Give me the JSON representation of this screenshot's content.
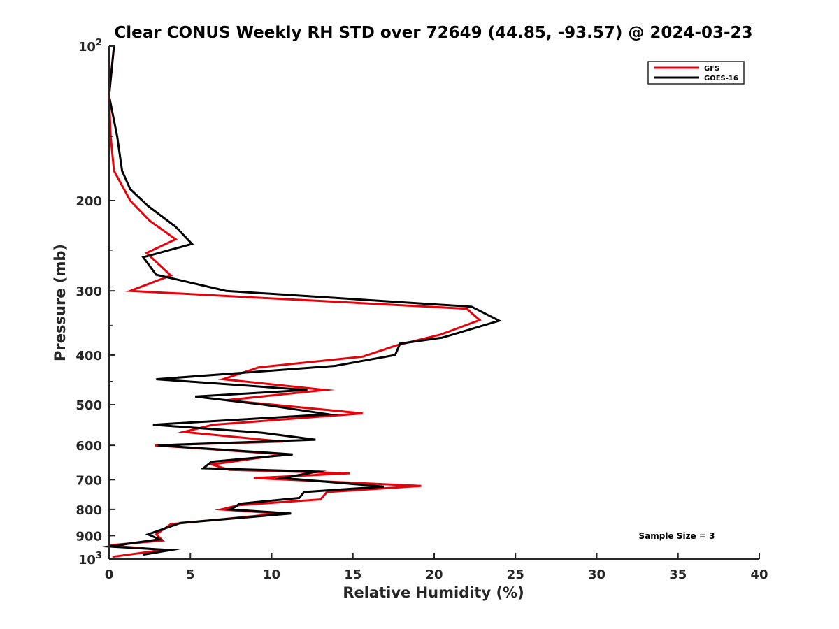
{
  "chart_data": {
    "type": "line",
    "title": "Clear CONUS Weekly RH STD over 72649 (44.85, -93.57) @ 2024-03-23",
    "xlabel": "Relative Humidity (%)",
    "ylabel": "Pressure (mb)",
    "xlim": [
      0,
      40
    ],
    "ylim": [
      100,
      1000
    ],
    "y_scale": "log",
    "y_reversed": true,
    "x_ticks": [
      "0",
      "5",
      "10",
      "15",
      "20",
      "25",
      "30",
      "35",
      "40"
    ],
    "y_ticks": [
      {
        "value": 100,
        "base": "10",
        "sup": "2"
      },
      {
        "value": 200,
        "label": "200"
      },
      {
        "value": 300,
        "label": "300"
      },
      {
        "value": 400,
        "label": "400"
      },
      {
        "value": 500,
        "label": "500"
      },
      {
        "value": 600,
        "label": "600"
      },
      {
        "value": 700,
        "label": "700"
      },
      {
        "value": 800,
        "label": "800"
      },
      {
        "value": 900,
        "label": "900"
      },
      {
        "value": 1000,
        "base": "10",
        "sup": "3"
      }
    ],
    "legend_position": "top-right",
    "annotation": "Sample Size = 3",
    "series": [
      {
        "name": "GFS",
        "color": "#e8000b",
        "points": [
          [
            0.3,
            100
          ],
          [
            0.0,
            125
          ],
          [
            0.1,
            150
          ],
          [
            0.3,
            175
          ],
          [
            0.8,
            187
          ],
          [
            1.3,
            200
          ],
          [
            2.5,
            219
          ],
          [
            4.1,
            238
          ],
          [
            2.3,
            253
          ],
          [
            3.8,
            280
          ],
          [
            1.3,
            300
          ],
          [
            22.0,
            325
          ],
          [
            22.8,
            342
          ],
          [
            20.4,
            365
          ],
          [
            17.7,
            383
          ],
          [
            15.6,
            403
          ],
          [
            9.2,
            423
          ],
          [
            7.0,
            446
          ],
          [
            13.3,
            468
          ],
          [
            7.2,
            490
          ],
          [
            15.6,
            520
          ],
          [
            6.4,
            547
          ],
          [
            4.6,
            565
          ],
          [
            10.7,
            590
          ],
          [
            2.8,
            600
          ],
          [
            10.8,
            625
          ],
          [
            6.3,
            654
          ],
          [
            7.4,
            670
          ],
          [
            14.8,
            680
          ],
          [
            8.9,
            695
          ],
          [
            19.2,
            720
          ],
          [
            13.4,
            740
          ],
          [
            13.0,
            765
          ],
          [
            8.0,
            785
          ],
          [
            6.9,
            800
          ],
          [
            10.5,
            815
          ],
          [
            3.8,
            855
          ],
          [
            2.9,
            895
          ],
          [
            3.3,
            920
          ],
          [
            0.0,
            940
          ],
          [
            3.3,
            960
          ],
          [
            0.2,
            990
          ]
        ]
      },
      {
        "name": "GOES-16",
        "color": "#000000",
        "points": [
          [
            0.3,
            100
          ],
          [
            0.0,
            125
          ],
          [
            0.5,
            150
          ],
          [
            0.8,
            175
          ],
          [
            1.3,
            190
          ],
          [
            2.4,
            205
          ],
          [
            4.1,
            225
          ],
          [
            5.1,
            243
          ],
          [
            2.1,
            258
          ],
          [
            2.9,
            279
          ],
          [
            5.2,
            290
          ],
          [
            7.2,
            300
          ],
          [
            22.3,
            322
          ],
          [
            24.0,
            343
          ],
          [
            20.5,
            370
          ],
          [
            17.9,
            380
          ],
          [
            17.6,
            400
          ],
          [
            13.9,
            420
          ],
          [
            2.9,
            446
          ],
          [
            12.2,
            468
          ],
          [
            5.3,
            482
          ],
          [
            9.5,
            500
          ],
          [
            13.5,
            522
          ],
          [
            2.7,
            547
          ],
          [
            9.4,
            567
          ],
          [
            12.7,
            585
          ],
          [
            3.0,
            600
          ],
          [
            11.3,
            625
          ],
          [
            6.3,
            646
          ],
          [
            5.8,
            665
          ],
          [
            12.8,
            675
          ],
          [
            10.7,
            695
          ],
          [
            16.9,
            722
          ],
          [
            12.0,
            740
          ],
          [
            11.7,
            760
          ],
          [
            8.0,
            780
          ],
          [
            7.8,
            790
          ],
          [
            7.4,
            800
          ],
          [
            11.2,
            815
          ],
          [
            4.4,
            850
          ],
          [
            2.4,
            895
          ],
          [
            3.1,
            915
          ],
          [
            1.5,
            930
          ],
          [
            0.0,
            945
          ],
          [
            3.8,
            960
          ],
          [
            2.1,
            980
          ]
        ]
      }
    ]
  }
}
